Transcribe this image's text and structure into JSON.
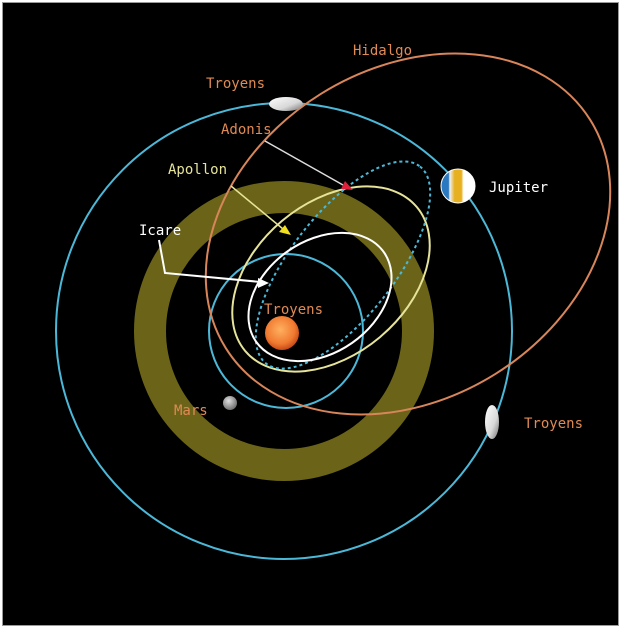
{
  "colors": {
    "background": "#000000",
    "orbit_blue": "#4cb8d8",
    "asteroid_belt": "#6b6418",
    "hidalgo": "#d8855a",
    "label_orange": "#e08a55",
    "apollon": "#e6e49a",
    "icare": "#ffffff",
    "adonis_arrow": "#e0203a",
    "apollon_arrow": "#f0e020",
    "sun": "#f07a30"
  },
  "labels": {
    "troyens_top": "Troyens",
    "hidalgo": "Hidalgo",
    "adonis": "Adonis",
    "jupiter": "Jupiter",
    "apollon": "Apollon",
    "icare": "Icare",
    "troyens_center": "Troyens",
    "mars": "Mars",
    "troyens_right": "Troyens"
  }
}
